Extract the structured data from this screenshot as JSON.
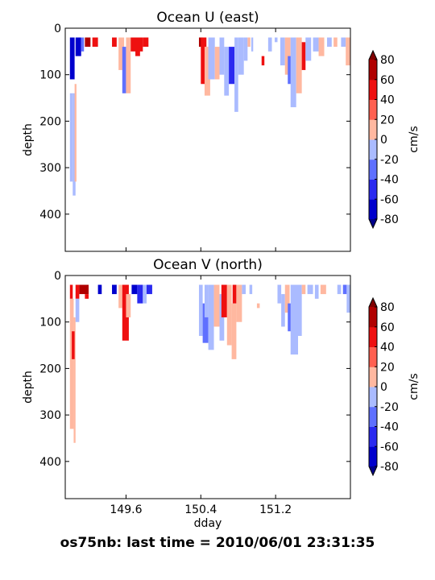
{
  "figure": {
    "suptitle": "os75nb: last time = 2010/06/01 23:31:35"
  },
  "colorbar": {
    "label": "cm/s",
    "ticks": [
      -80,
      -60,
      -40,
      -20,
      0,
      20,
      40,
      60,
      80
    ],
    "levels": [
      -80,
      -60,
      -40,
      -20,
      0,
      20,
      40,
      60,
      80
    ],
    "colors": [
      "#0000cd",
      "#2a2af0",
      "#5f70ff",
      "#aabbff",
      "#ffb8a0",
      "#ff6050",
      "#ee1010",
      "#b00000"
    ],
    "under_color": "#00008b",
    "over_color": "#800000"
  },
  "chart_data": [
    {
      "type": "heatmap",
      "title": "Ocean U (east)",
      "xlabel": "",
      "ylabel": "depth",
      "xlim": [
        148.95,
        152.0
      ],
      "ylim": [
        480,
        0
      ],
      "xticks": [
        149.6,
        150.4,
        151.2
      ],
      "xticklabels": [
        "",
        "",
        ""
      ],
      "yticks": [
        0,
        100,
        200,
        300,
        400
      ],
      "colorbar_label": "cm/s",
      "columns": [
        {
          "x0": 149.0,
          "x1": 149.05,
          "top": 20,
          "bottom": 110,
          "value": -70
        },
        {
          "x0": 149.0,
          "x1": 149.03,
          "top": 140,
          "bottom": 330,
          "value": -10
        },
        {
          "x0": 149.03,
          "x1": 149.06,
          "top": 140,
          "bottom": 360,
          "value": -12
        },
        {
          "x0": 149.05,
          "x1": 149.07,
          "top": 120,
          "bottom": 330,
          "value": 12
        },
        {
          "x0": 149.06,
          "x1": 149.12,
          "top": 20,
          "bottom": 60,
          "value": -75
        },
        {
          "x0": 149.12,
          "x1": 149.15,
          "top": 20,
          "bottom": 50,
          "value": -30
        },
        {
          "x0": 149.16,
          "x1": 149.22,
          "top": 20,
          "bottom": 40,
          "value": 60
        },
        {
          "x0": 149.24,
          "x1": 149.3,
          "top": 20,
          "bottom": 40,
          "value": 55
        },
        {
          "x0": 149.45,
          "x1": 149.5,
          "top": 20,
          "bottom": 40,
          "value": 50
        },
        {
          "x0": 149.52,
          "x1": 149.58,
          "top": 20,
          "bottom": 90,
          "value": 15
        },
        {
          "x0": 149.56,
          "x1": 149.6,
          "top": 40,
          "bottom": 140,
          "value": -25
        },
        {
          "x0": 149.6,
          "x1": 149.65,
          "top": 20,
          "bottom": 140,
          "value": 15
        },
        {
          "x0": 149.65,
          "x1": 149.78,
          "top": 20,
          "bottom": 50,
          "value": 55
        },
        {
          "x0": 149.7,
          "x1": 149.75,
          "top": 40,
          "bottom": 60,
          "value": 45
        },
        {
          "x0": 149.78,
          "x1": 149.84,
          "top": 20,
          "bottom": 40,
          "value": 48
        },
        {
          "x0": 150.38,
          "x1": 150.42,
          "top": 20,
          "bottom": 40,
          "value": 70
        },
        {
          "x0": 150.4,
          "x1": 150.46,
          "top": 20,
          "bottom": 120,
          "value": 45
        },
        {
          "x0": 150.44,
          "x1": 150.5,
          "top": 40,
          "bottom": 145,
          "value": 15
        },
        {
          "x0": 150.48,
          "x1": 150.55,
          "top": 20,
          "bottom": 110,
          "value": -15
        },
        {
          "x0": 150.55,
          "x1": 150.6,
          "top": 40,
          "bottom": 110,
          "value": 12
        },
        {
          "x0": 150.6,
          "x1": 150.65,
          "top": 20,
          "bottom": 100,
          "value": -14
        },
        {
          "x0": 150.65,
          "x1": 150.7,
          "top": 40,
          "bottom": 145,
          "value": -16
        },
        {
          "x0": 150.7,
          "x1": 150.76,
          "top": 40,
          "bottom": 120,
          "value": -45
        },
        {
          "x0": 150.76,
          "x1": 150.8,
          "top": 20,
          "bottom": 180,
          "value": -15
        },
        {
          "x0": 150.8,
          "x1": 150.86,
          "top": 20,
          "bottom": 100,
          "value": -12
        },
        {
          "x0": 150.86,
          "x1": 150.9,
          "top": 20,
          "bottom": 70,
          "value": -18
        },
        {
          "x0": 150.9,
          "x1": 150.93,
          "top": 20,
          "bottom": 40,
          "value": 14
        },
        {
          "x0": 150.94,
          "x1": 150.96,
          "top": 20,
          "bottom": 50,
          "value": -12
        },
        {
          "x0": 151.05,
          "x1": 151.08,
          "top": 60,
          "bottom": 80,
          "value": 50
        },
        {
          "x0": 151.12,
          "x1": 151.16,
          "top": 20,
          "bottom": 50,
          "value": -15
        },
        {
          "x0": 151.19,
          "x1": 151.22,
          "top": 20,
          "bottom": 30,
          "value": -20
        },
        {
          "x0": 151.25,
          "x1": 151.3,
          "top": 20,
          "bottom": 80,
          "value": -15
        },
        {
          "x0": 151.3,
          "x1": 151.36,
          "top": 20,
          "bottom": 100,
          "value": 15
        },
        {
          "x0": 151.33,
          "x1": 151.38,
          "top": 60,
          "bottom": 120,
          "value": -30
        },
        {
          "x0": 151.36,
          "x1": 151.42,
          "top": 20,
          "bottom": 170,
          "value": -15
        },
        {
          "x0": 151.42,
          "x1": 151.48,
          "top": 20,
          "bottom": 140,
          "value": 15
        },
        {
          "x0": 151.48,
          "x1": 151.52,
          "top": 30,
          "bottom": 90,
          "value": 45
        },
        {
          "x0": 151.52,
          "x1": 151.58,
          "top": 20,
          "bottom": 70,
          "value": -14
        },
        {
          "x0": 151.6,
          "x1": 151.66,
          "top": 20,
          "bottom": 50,
          "value": -14
        },
        {
          "x0": 151.66,
          "x1": 151.72,
          "top": 20,
          "bottom": 60,
          "value": 14
        },
        {
          "x0": 151.75,
          "x1": 151.8,
          "top": 20,
          "bottom": 40,
          "value": -12
        },
        {
          "x0": 151.82,
          "x1": 151.86,
          "top": 20,
          "bottom": 40,
          "value": 14
        },
        {
          "x0": 151.9,
          "x1": 151.95,
          "top": 20,
          "bottom": 40,
          "value": -14
        },
        {
          "x0": 151.95,
          "x1": 152.0,
          "top": 20,
          "bottom": 80,
          "value": 14
        }
      ]
    },
    {
      "type": "heatmap",
      "title": "Ocean V (north)",
      "xlabel": "dday",
      "ylabel": "depth",
      "xlim": [
        148.95,
        152.0
      ],
      "ylim": [
        480,
        0
      ],
      "xticks": [
        149.6,
        150.4,
        151.2
      ],
      "xticklabels": [
        "149.6",
        "150.4",
        "151.2"
      ],
      "yticks": [
        0,
        100,
        200,
        300,
        400
      ],
      "colorbar_label": "cm/s",
      "columns": [
        {
          "x0": 149.0,
          "x1": 149.03,
          "top": 20,
          "bottom": 50,
          "value": 55
        },
        {
          "x0": 149.0,
          "x1": 149.04,
          "top": 50,
          "bottom": 330,
          "value": 14
        },
        {
          "x0": 149.04,
          "x1": 149.06,
          "top": 90,
          "bottom": 360,
          "value": 14
        },
        {
          "x0": 149.02,
          "x1": 149.05,
          "top": 120,
          "bottom": 180,
          "value": 45
        },
        {
          "x0": 149.06,
          "x1": 149.1,
          "top": 20,
          "bottom": 50,
          "value": 55
        },
        {
          "x0": 149.06,
          "x1": 149.1,
          "top": 50,
          "bottom": 100,
          "value": -15
        },
        {
          "x0": 149.1,
          "x1": 149.2,
          "top": 20,
          "bottom": 40,
          "value": 60
        },
        {
          "x0": 149.16,
          "x1": 149.2,
          "top": 40,
          "bottom": 50,
          "value": 45
        },
        {
          "x0": 149.3,
          "x1": 149.34,
          "top": 20,
          "bottom": 40,
          "value": -65
        },
        {
          "x0": 149.45,
          "x1": 149.5,
          "top": 20,
          "bottom": 40,
          "value": -70
        },
        {
          "x0": 149.52,
          "x1": 149.56,
          "top": 20,
          "bottom": 70,
          "value": 15
        },
        {
          "x0": 149.56,
          "x1": 149.63,
          "top": 20,
          "bottom": 140,
          "value": 55
        },
        {
          "x0": 149.6,
          "x1": 149.65,
          "top": 40,
          "bottom": 90,
          "value": 15
        },
        {
          "x0": 149.66,
          "x1": 149.72,
          "top": 20,
          "bottom": 40,
          "value": -65
        },
        {
          "x0": 149.72,
          "x1": 149.78,
          "top": 20,
          "bottom": 60,
          "value": -45
        },
        {
          "x0": 149.78,
          "x1": 149.82,
          "top": 20,
          "bottom": 60,
          "value": -15
        },
        {
          "x0": 149.82,
          "x1": 149.88,
          "top": 20,
          "bottom": 40,
          "value": -60
        },
        {
          "x0": 150.38,
          "x1": 150.42,
          "top": 20,
          "bottom": 130,
          "value": -15
        },
        {
          "x0": 150.42,
          "x1": 150.48,
          "top": 60,
          "bottom": 145,
          "value": -40
        },
        {
          "x0": 150.44,
          "x1": 150.48,
          "top": 20,
          "bottom": 90,
          "value": -15
        },
        {
          "x0": 150.48,
          "x1": 150.54,
          "top": 20,
          "bottom": 160,
          "value": -14
        },
        {
          "x0": 150.54,
          "x1": 150.6,
          "top": 20,
          "bottom": 110,
          "value": 15
        },
        {
          "x0": 150.6,
          "x1": 150.65,
          "top": 40,
          "bottom": 140,
          "value": -15
        },
        {
          "x0": 150.62,
          "x1": 150.68,
          "top": 20,
          "bottom": 90,
          "value": 45
        },
        {
          "x0": 150.68,
          "x1": 150.73,
          "top": 20,
          "bottom": 150,
          "value": 15
        },
        {
          "x0": 150.73,
          "x1": 150.78,
          "top": 60,
          "bottom": 180,
          "value": 14
        },
        {
          "x0": 150.74,
          "x1": 150.78,
          "top": 20,
          "bottom": 60,
          "value": 45
        },
        {
          "x0": 150.78,
          "x1": 150.84,
          "top": 20,
          "bottom": 100,
          "value": 15
        },
        {
          "x0": 150.84,
          "x1": 150.88,
          "top": 20,
          "bottom": 40,
          "value": -14
        },
        {
          "x0": 150.92,
          "x1": 150.95,
          "top": 20,
          "bottom": 40,
          "value": -12
        },
        {
          "x0": 151.0,
          "x1": 151.03,
          "top": 60,
          "bottom": 70,
          "value": 14
        },
        {
          "x0": 151.22,
          "x1": 151.26,
          "top": 20,
          "bottom": 60,
          "value": -14
        },
        {
          "x0": 151.26,
          "x1": 151.3,
          "top": 40,
          "bottom": 110,
          "value": -15
        },
        {
          "x0": 151.3,
          "x1": 151.35,
          "top": 20,
          "bottom": 80,
          "value": 15
        },
        {
          "x0": 151.33,
          "x1": 151.37,
          "top": 60,
          "bottom": 120,
          "value": -30
        },
        {
          "x0": 151.36,
          "x1": 151.44,
          "top": 20,
          "bottom": 170,
          "value": -15
        },
        {
          "x0": 151.44,
          "x1": 151.48,
          "top": 20,
          "bottom": 130,
          "value": -15
        },
        {
          "x0": 151.48,
          "x1": 151.52,
          "top": 20,
          "bottom": 40,
          "value": 14
        },
        {
          "x0": 151.54,
          "x1": 151.6,
          "top": 20,
          "bottom": 40,
          "value": -14
        },
        {
          "x0": 151.62,
          "x1": 151.66,
          "top": 20,
          "bottom": 50,
          "value": -12
        },
        {
          "x0": 151.68,
          "x1": 151.74,
          "top": 20,
          "bottom": 40,
          "value": 14
        },
        {
          "x0": 151.86,
          "x1": 151.9,
          "top": 20,
          "bottom": 40,
          "value": -14
        },
        {
          "x0": 151.92,
          "x1": 151.96,
          "top": 20,
          "bottom": 40,
          "value": -40
        },
        {
          "x0": 151.96,
          "x1": 152.0,
          "top": 20,
          "bottom": 80,
          "value": -14
        }
      ]
    }
  ]
}
